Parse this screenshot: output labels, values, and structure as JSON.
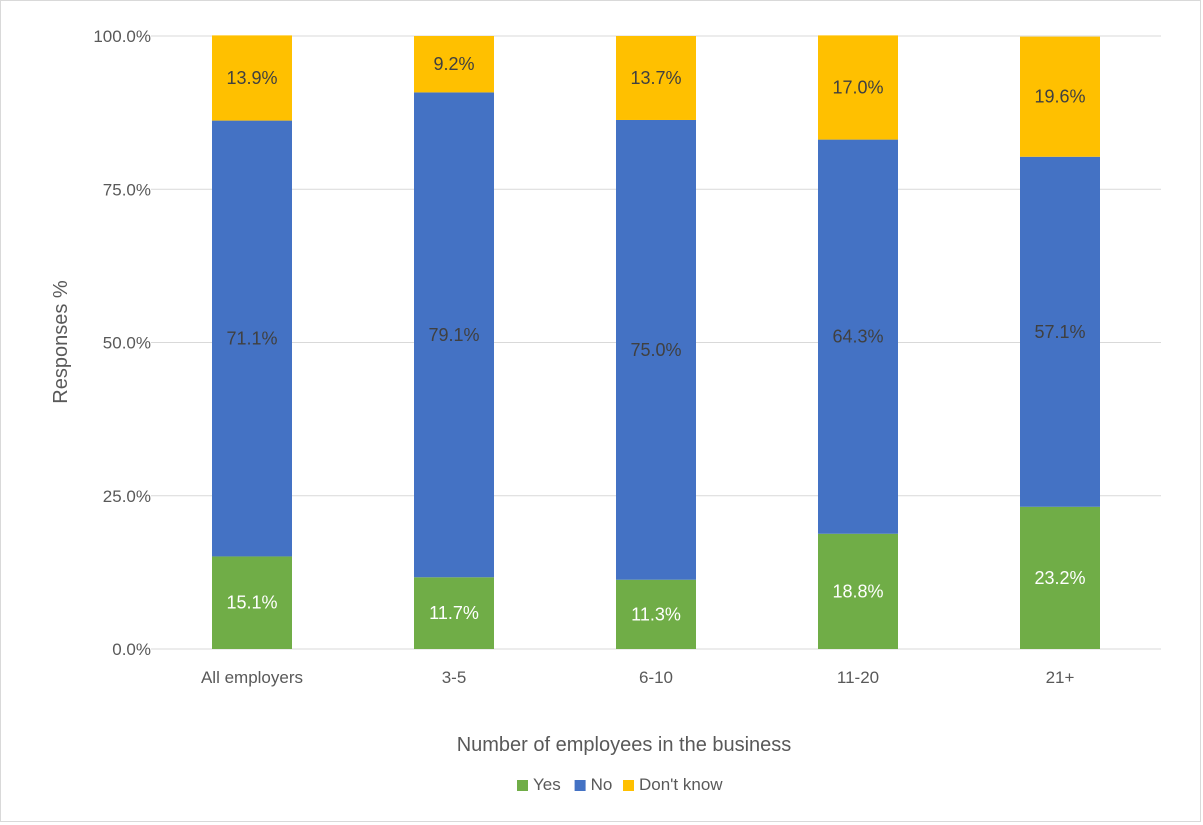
{
  "chart_data": {
    "type": "bar",
    "stacked": true,
    "categories": [
      "All employers",
      "3-5",
      "6-10",
      "11-20",
      "21+"
    ],
    "series": [
      {
        "name": "Yes",
        "color": "#70ad47",
        "label_color": "#ffffff",
        "values": [
          15.1,
          11.7,
          11.3,
          18.8,
          23.2
        ],
        "labels": [
          "15.1%",
          "11.7%",
          "11.3%",
          "18.8%",
          "23.2%"
        ]
      },
      {
        "name": "No",
        "color": "#4472c4",
        "label_color": "#404040",
        "values": [
          71.1,
          79.1,
          75.0,
          64.3,
          57.1
        ],
        "labels": [
          "71.1%",
          "79.1%",
          "75.0%",
          "64.3%",
          "57.1%"
        ]
      },
      {
        "name": "Don't know",
        "color": "#ffc000",
        "label_color": "#404040",
        "values": [
          13.9,
          9.2,
          13.7,
          17.0,
          19.6
        ],
        "labels": [
          "13.9%",
          "9.2%",
          "13.7%",
          "17.0%",
          "19.6%"
        ]
      }
    ],
    "xlabel": "Number of employees in the business",
    "ylabel": "Responses %",
    "ylim": [
      0,
      100
    ],
    "yticks": [
      0,
      25,
      50,
      75,
      100
    ],
    "ytick_labels": [
      "0.0%",
      "25.0%",
      "50.0%",
      "75.0%",
      "100.0%"
    ],
    "grid": true,
    "legend_position": "bottom"
  }
}
